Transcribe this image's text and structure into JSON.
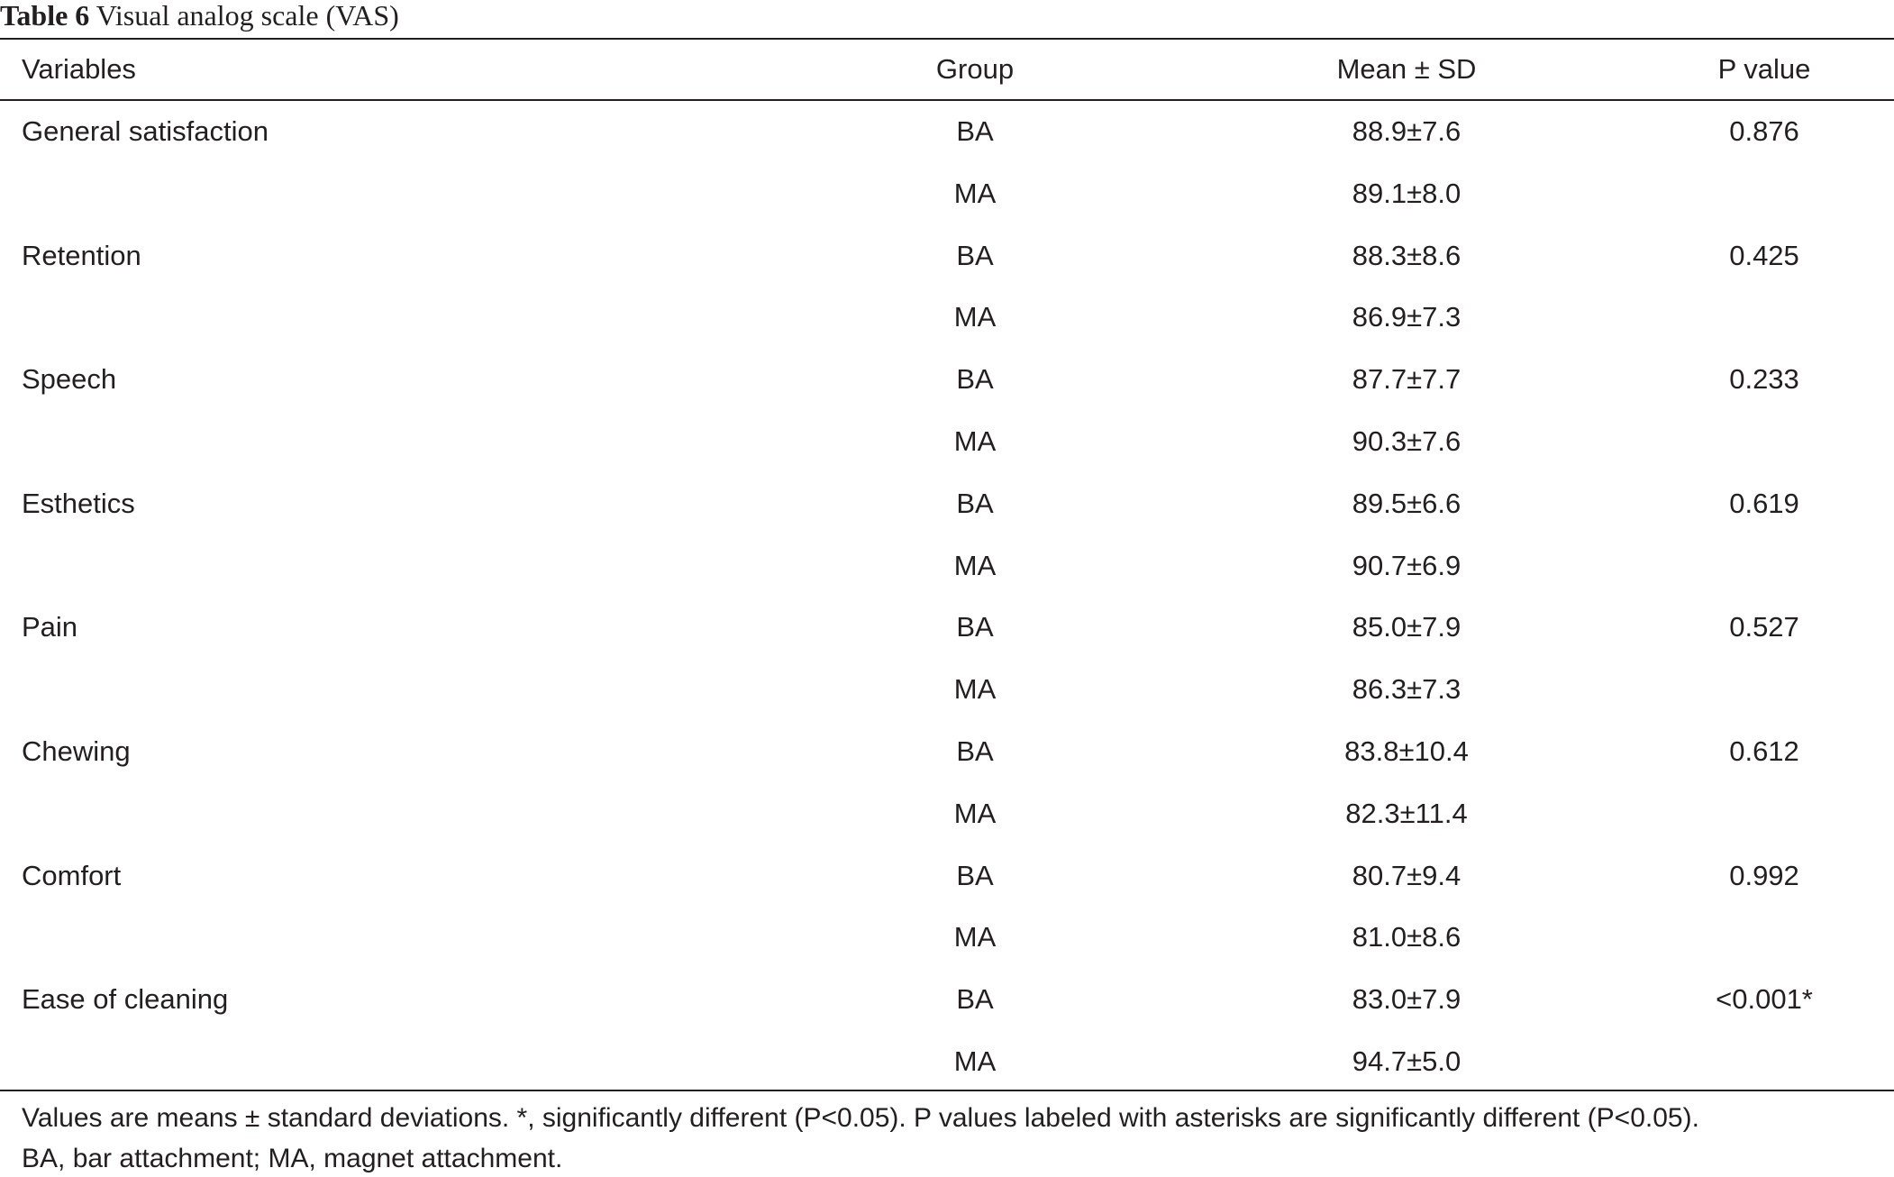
{
  "caption": {
    "label": "Table 6",
    "text": "Visual analog scale (VAS)"
  },
  "table": {
    "headers": [
      "Variables",
      "Group",
      "Mean ± SD",
      "P value"
    ],
    "variables": [
      {
        "name": "General satisfaction",
        "p": "0.876",
        "groups": [
          {
            "group": "BA",
            "mean": "88.9±7.6"
          },
          {
            "group": "MA",
            "mean": "89.1±8.0"
          }
        ]
      },
      {
        "name": "Retention",
        "p": "0.425",
        "groups": [
          {
            "group": "BA",
            "mean": "88.3±8.6"
          },
          {
            "group": "MA",
            "mean": "86.9±7.3"
          }
        ]
      },
      {
        "name": "Speech",
        "p": "0.233",
        "groups": [
          {
            "group": "BA",
            "mean": "87.7±7.7"
          },
          {
            "group": "MA",
            "mean": "90.3±7.6"
          }
        ]
      },
      {
        "name": "Esthetics",
        "p": "0.619",
        "groups": [
          {
            "group": "BA",
            "mean": "89.5±6.6"
          },
          {
            "group": "MA",
            "mean": "90.7±6.9"
          }
        ]
      },
      {
        "name": "Pain",
        "p": "0.527",
        "groups": [
          {
            "group": "BA",
            "mean": "85.0±7.9"
          },
          {
            "group": "MA",
            "mean": "86.3±7.3"
          }
        ]
      },
      {
        "name": "Chewing",
        "p": "0.612",
        "groups": [
          {
            "group": "BA",
            "mean": "83.8±10.4"
          },
          {
            "group": "MA",
            "mean": "82.3±11.4"
          }
        ]
      },
      {
        "name": "Comfort",
        "p": "0.992",
        "groups": [
          {
            "group": "BA",
            "mean": "80.7±9.4"
          },
          {
            "group": "MA",
            "mean": "81.0±8.6"
          }
        ]
      },
      {
        "name": "Ease of cleaning",
        "p": "<0.001*",
        "groups": [
          {
            "group": "BA",
            "mean": "83.0±7.9"
          },
          {
            "group": "MA",
            "mean": "94.7±5.0"
          }
        ]
      }
    ]
  },
  "footnote": [
    "Values are means ± standard deviations. *, significantly different (P<0.05). P values labeled with asterisks are significantly different (P<0.05).",
    "BA, bar attachment; MA, magnet attachment."
  ]
}
